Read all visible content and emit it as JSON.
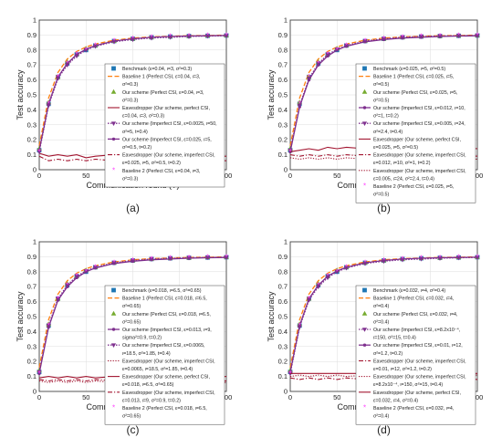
{
  "colors": {
    "benchmark": "#1f77b4",
    "baseline1": "#ff7f0e",
    "perfect": "#77ac30",
    "imperfect": "#7e2f8e",
    "eve": "#a2142f",
    "baseline2": "#ff40ff"
  },
  "chart_data": [
    {
      "type": "line",
      "caption": "(a)",
      "xlabel": "Communication round (T)",
      "ylabel": "Test accuracy",
      "xlim": [
        0,
        200
      ],
      "ylim": [
        0,
        1
      ],
      "grid": true,
      "legend_position": "right",
      "x": [
        0,
        10,
        20,
        30,
        40,
        50,
        60,
        80,
        100,
        120,
        140,
        160,
        180,
        200
      ],
      "series": [
        {
          "name": "Benchmark (ε=0.04, ι=3, σ²=0.3)",
          "values": [
            0.13,
            0.44,
            0.62,
            0.71,
            0.77,
            0.8,
            0.83,
            0.86,
            0.875,
            0.885,
            0.89,
            0.893,
            0.895,
            0.897
          ]
        },
        {
          "name": "Baseline 1 (Perfect CSI, ε=0.04, ι=3, σ²=0.3)",
          "values": [
            0.16,
            0.48,
            0.65,
            0.74,
            0.79,
            0.82,
            0.84,
            0.865,
            0.88,
            0.888,
            0.892,
            0.895,
            0.897,
            0.9
          ]
        },
        {
          "name": "Our scheme (Perfect CSI, ε=0.04, ι=3, σ²=0.3)",
          "values": [
            0.14,
            0.45,
            0.62,
            0.72,
            0.77,
            0.81,
            0.83,
            0.86,
            0.875,
            0.885,
            0.89,
            0.893,
            0.896,
            0.898
          ]
        },
        {
          "name": "Eavesdropper (Our scheme, perfect CSI, ε=0.04, ι=3, σ²=0.3)",
          "values": [
            0.11,
            0.09,
            0.1,
            0.09,
            0.1,
            0.08,
            0.09,
            0.1,
            0.09,
            0.09,
            0.1,
            0.09,
            0.09,
            0.09
          ]
        },
        {
          "name": "Our scheme (Imperfect CSI, ε=0.0025, ι=50, σ²=5, t=0.4)",
          "values": [
            0.12,
            0.43,
            0.61,
            0.7,
            0.76,
            0.8,
            0.825,
            0.855,
            0.87,
            0.88,
            0.885,
            0.89,
            0.893,
            0.895
          ]
        },
        {
          "name": "Our scheme (Imperfect CSI, ε=0.025, ι=5, σ²=0.5, t=0.2)",
          "values": [
            0.13,
            0.44,
            0.62,
            0.71,
            0.77,
            0.805,
            0.83,
            0.86,
            0.875,
            0.885,
            0.89,
            0.893,
            0.895,
            0.897
          ]
        },
        {
          "name": "Eavesdropper (Our scheme, imperfect CSI, ε=0.025, ι=5, σ²=0.5, t=0.2)",
          "values": [
            0.09,
            0.06,
            0.07,
            0.06,
            0.07,
            0.06,
            0.07,
            0.06,
            0.07,
            0.06,
            0.07,
            0.06,
            0.07,
            0.06
          ]
        },
        {
          "name": "Baseline 2 (Perfect CSI, ε=0.04, ι=3, σ²=0.3)",
          "values": [
            0.12,
            0.44,
            0.62,
            0.71,
            0.77,
            0.8,
            0.83,
            0.86,
            0.875,
            0.885,
            0.89,
            0.893,
            0.895,
            0.897
          ]
        }
      ]
    },
    {
      "type": "line",
      "caption": "(b)",
      "xlabel": "Communication round (T)",
      "ylabel": "Test accuracy",
      "xlim": [
        0,
        200
      ],
      "ylim": [
        0,
        1
      ],
      "grid": true,
      "legend_position": "right",
      "x": [
        0,
        10,
        20,
        30,
        40,
        50,
        60,
        80,
        100,
        120,
        140,
        160,
        180,
        200
      ],
      "series": [
        {
          "name": "Benchmark (ε=0.025, ι=5, σ²=0.5)",
          "values": [
            0.13,
            0.44,
            0.62,
            0.71,
            0.77,
            0.8,
            0.83,
            0.86,
            0.875,
            0.885,
            0.89,
            0.893,
            0.895,
            0.897
          ]
        },
        {
          "name": "Baseline 1 (Perfect CSI, ε=0.025, ι=5, σ²=0.5)",
          "values": [
            0.16,
            0.48,
            0.65,
            0.74,
            0.79,
            0.82,
            0.84,
            0.865,
            0.88,
            0.888,
            0.892,
            0.895,
            0.897,
            0.9
          ]
        },
        {
          "name": "Our scheme (Perfect CSI, ε=0.025, ι=5, σ²=0.5)",
          "values": [
            0.14,
            0.45,
            0.62,
            0.72,
            0.77,
            0.81,
            0.83,
            0.86,
            0.875,
            0.885,
            0.89,
            0.893,
            0.896,
            0.898
          ]
        },
        {
          "name": "Our scheme (Imperfect CSI, ε=0.012, ι=10, σ²=1, t=0.2)",
          "values": [
            0.12,
            0.42,
            0.6,
            0.7,
            0.76,
            0.8,
            0.825,
            0.855,
            0.87,
            0.88,
            0.885,
            0.89,
            0.893,
            0.895
          ]
        },
        {
          "name": "Our scheme (Imperfect CSI, ε=0.005, ι=24, σ²=2.4, t=0.4)",
          "values": [
            0.13,
            0.43,
            0.61,
            0.71,
            0.77,
            0.805,
            0.83,
            0.86,
            0.875,
            0.885,
            0.89,
            0.893,
            0.895,
            0.897
          ]
        },
        {
          "name": "Eavesdropper (Our scheme, perfect CSI, ε=0.025, ι=5, σ²=0.5)",
          "values": [
            0.12,
            0.13,
            0.14,
            0.13,
            0.15,
            0.14,
            0.15,
            0.14,
            0.15,
            0.14,
            0.15,
            0.14,
            0.15,
            0.14
          ]
        },
        {
          "name": "Eavesdropper (Our scheme, imperfect CSI, ε=0.012, ι=10, σ²=1, t=0.2)",
          "values": [
            0.1,
            0.09,
            0.1,
            0.09,
            0.1,
            0.09,
            0.1,
            0.09,
            0.1,
            0.09,
            0.1,
            0.09,
            0.1,
            0.09
          ]
        },
        {
          "name": "Eavesdropper (Our scheme, imperfect CSI, ε=0.005, ι=24, σ²=2.4, t=0.4)",
          "values": [
            0.08,
            0.07,
            0.08,
            0.07,
            0.08,
            0.07,
            0.08,
            0.07,
            0.08,
            0.07,
            0.08,
            0.07,
            0.08,
            0.07
          ]
        },
        {
          "name": "Baseline 2 (Perfect CSI, ε=0.025, ι=5, σ²=0.5)",
          "values": [
            0.12,
            0.44,
            0.62,
            0.71,
            0.77,
            0.8,
            0.83,
            0.86,
            0.875,
            0.885,
            0.89,
            0.893,
            0.895,
            0.897
          ]
        }
      ]
    },
    {
      "type": "line",
      "caption": "(c)",
      "xlabel": "Communication round (T)",
      "ylabel": "Test accuracy",
      "xlim": [
        0,
        200
      ],
      "ylim": [
        0,
        1
      ],
      "grid": true,
      "legend_position": "right",
      "x": [
        0,
        10,
        20,
        30,
        40,
        50,
        60,
        80,
        100,
        120,
        140,
        160,
        180,
        200
      ],
      "series": [
        {
          "name": "Benchmark (ε=0.018, ι=6.5, σ²=0.65)",
          "values": [
            0.13,
            0.44,
            0.62,
            0.71,
            0.77,
            0.8,
            0.83,
            0.86,
            0.875,
            0.885,
            0.89,
            0.893,
            0.895,
            0.897
          ]
        },
        {
          "name": "Baseline 1 (Perfect CSI, ε=0.018, ι=6.5, σ²=0.65)",
          "values": [
            0.16,
            0.48,
            0.65,
            0.74,
            0.79,
            0.82,
            0.84,
            0.865,
            0.88,
            0.888,
            0.892,
            0.895,
            0.897,
            0.9
          ]
        },
        {
          "name": "Our scheme (Perfect CSI, ε=0.018, ι=6.5, σ²=0.65)",
          "values": [
            0.14,
            0.45,
            0.62,
            0.72,
            0.77,
            0.81,
            0.83,
            0.86,
            0.875,
            0.885,
            0.89,
            0.893,
            0.896,
            0.898
          ]
        },
        {
          "name": "Our scheme (Imperfect CSI, ε=0.013, ι=9, sigma²=0.9, t=0.2)",
          "values": [
            0.12,
            0.43,
            0.61,
            0.7,
            0.76,
            0.8,
            0.825,
            0.855,
            0.87,
            0.88,
            0.885,
            0.89,
            0.893,
            0.895
          ]
        },
        {
          "name": "Our scheme (Imperfect CSI, ε=0.0065, ι=18.5, σ²=1.85, t=0.4)",
          "values": [
            0.13,
            0.44,
            0.62,
            0.71,
            0.77,
            0.805,
            0.83,
            0.86,
            0.875,
            0.885,
            0.89,
            0.893,
            0.895,
            0.897
          ]
        },
        {
          "name": "Eavesdropper (Our scheme, imperfect CSI, ε=0.0065, ι=18.5, σ²=1.85, t=0.4)",
          "values": [
            0.07,
            0.06,
            0.07,
            0.06,
            0.07,
            0.06,
            0.07,
            0.06,
            0.07,
            0.06,
            0.07,
            0.06,
            0.07,
            0.06
          ]
        },
        {
          "name": "Eavesdropper (Our scheme, perfect CSI, ε=0.018, ι=6.5, σ²=0.65)",
          "values": [
            0.09,
            0.1,
            0.09,
            0.1,
            0.09,
            0.1,
            0.09,
            0.1,
            0.09,
            0.1,
            0.09,
            0.1,
            0.09,
            0.1
          ]
        },
        {
          "name": "Eavesdropper (Our scheme, imperfect CSI, ε=0.013, ι=9, σ²=0.9, t=0.2)",
          "values": [
            0.08,
            0.07,
            0.08,
            0.07,
            0.08,
            0.07,
            0.08,
            0.07,
            0.08,
            0.07,
            0.08,
            0.07,
            0.08,
            0.07
          ]
        },
        {
          "name": "Baseline 2 (Perfect CSI, ε=0.018, ι=6.5, σ²=0.65)",
          "values": [
            0.12,
            0.44,
            0.62,
            0.71,
            0.77,
            0.8,
            0.83,
            0.86,
            0.875,
            0.885,
            0.89,
            0.893,
            0.895,
            0.897
          ]
        }
      ]
    },
    {
      "type": "line",
      "caption": "(d)",
      "xlabel": "Communication round (T)",
      "ylabel": "Test accuracy",
      "xlim": [
        0,
        200
      ],
      "ylim": [
        0,
        1
      ],
      "grid": true,
      "legend_position": "right",
      "x": [
        0,
        10,
        20,
        30,
        40,
        50,
        60,
        80,
        100,
        120,
        140,
        160,
        180,
        200
      ],
      "series": [
        {
          "name": "Benchmark (ε=0.032, ι=4, σ²=0.4)",
          "values": [
            0.13,
            0.44,
            0.62,
            0.71,
            0.77,
            0.8,
            0.83,
            0.86,
            0.875,
            0.885,
            0.89,
            0.893,
            0.895,
            0.897
          ]
        },
        {
          "name": "Baseline 1 (Perfect CSI, ε=0.032, ι=4, σ²=0.4)",
          "values": [
            0.16,
            0.48,
            0.65,
            0.74,
            0.79,
            0.82,
            0.84,
            0.865,
            0.88,
            0.888,
            0.892,
            0.895,
            0.897,
            0.9
          ]
        },
        {
          "name": "Our scheme (Perfect CSI, ε=0.032, ι=4, σ²=0.4)",
          "values": [
            0.14,
            0.45,
            0.62,
            0.72,
            0.77,
            0.81,
            0.83,
            0.86,
            0.875,
            0.885,
            0.89,
            0.893,
            0.896,
            0.898
          ]
        },
        {
          "name": "Our scheme (Imperfect CSI, ε=8.2x10⁻⁴, ι=150, σ²=15, t=0.4)",
          "values": [
            0.12,
            0.43,
            0.61,
            0.7,
            0.76,
            0.8,
            0.825,
            0.855,
            0.87,
            0.88,
            0.885,
            0.89,
            0.893,
            0.895
          ]
        },
        {
          "name": "Our scheme (Imperfect CSI, ε=0.01, ι=12, σ²=1.2, t=0.2)",
          "values": [
            0.13,
            0.44,
            0.62,
            0.71,
            0.77,
            0.805,
            0.83,
            0.86,
            0.875,
            0.885,
            0.89,
            0.893,
            0.895,
            0.897
          ]
        },
        {
          "name": "Eavesdropper (Our scheme, imperfect CSI, ε=0.01, ι=12, σ²=1.2, t=0.2)",
          "values": [
            0.09,
            0.08,
            0.09,
            0.08,
            0.09,
            0.08,
            0.09,
            0.08,
            0.09,
            0.08,
            0.09,
            0.08,
            0.09,
            0.08
          ]
        },
        {
          "name": "Eavesdropper (Our scheme, imperfect CSI, ε=8.2x10⁻⁴, ι=150, σ²=15, t=0.4)",
          "values": [
            0.1,
            0.11,
            0.1,
            0.11,
            0.1,
            0.11,
            0.1,
            0.11,
            0.1,
            0.11,
            0.1,
            0.11,
            0.1,
            0.11
          ]
        },
        {
          "name": "Eavesdropper (Our scheme, perfect CSI, ε=0.032, ι=4, σ²=0.4)",
          "values": [
            0.12,
            0.12,
            0.12,
            0.12,
            0.12,
            0.12,
            0.12,
            0.12,
            0.12,
            0.12,
            0.12,
            0.12,
            0.12,
            0.12
          ]
        },
        {
          "name": "Baseline 2 (Perfect CSI, ε=0.032, ι=4, σ²=0.4)",
          "values": [
            0.12,
            0.44,
            0.62,
            0.71,
            0.77,
            0.8,
            0.83,
            0.86,
            0.875,
            0.885,
            0.89,
            0.893,
            0.895,
            0.897
          ]
        }
      ]
    }
  ]
}
